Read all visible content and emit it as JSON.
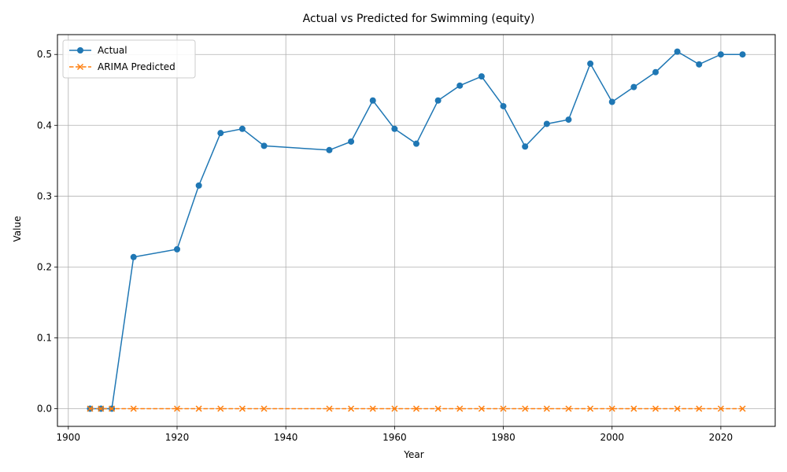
{
  "chart_data": {
    "type": "line",
    "title": "Actual vs Predicted for Swimming (equity)",
    "xlabel": "Year",
    "ylabel": "Value",
    "xlim": [
      1898,
      2030
    ],
    "ylim": [
      -0.025,
      0.528
    ],
    "xticks": [
      1900,
      1920,
      1940,
      1960,
      1980,
      2000,
      2020
    ],
    "yticks": [
      0.0,
      0.1,
      0.2,
      0.3,
      0.4,
      0.5
    ],
    "ytick_labels": [
      "0.0",
      "0.1",
      "0.2",
      "0.3",
      "0.4",
      "0.5"
    ],
    "grid": true,
    "legend_position": "top-left",
    "x": [
      1904,
      1906,
      1908,
      1912,
      1920,
      1924,
      1928,
      1932,
      1936,
      1948,
      1952,
      1956,
      1960,
      1964,
      1968,
      1972,
      1976,
      1980,
      1984,
      1988,
      1992,
      1996,
      2000,
      2004,
      2008,
      2012,
      2016,
      2020,
      2024
    ],
    "series": [
      {
        "name": "Actual",
        "color": "#1f77b4",
        "style": "solid",
        "marker": "circle",
        "values": [
          0.0,
          0.0,
          0.0,
          0.214,
          0.225,
          0.315,
          0.389,
          0.395,
          0.371,
          0.365,
          0.377,
          0.435,
          0.395,
          0.374,
          0.435,
          0.456,
          0.469,
          0.427,
          0.37,
          0.402,
          0.408,
          0.487,
          0.433,
          0.454,
          0.475,
          0.504,
          0.486,
          0.5,
          0.5
        ]
      },
      {
        "name": "ARIMA Predicted",
        "color": "#ff7f0e",
        "style": "dashed",
        "marker": "x",
        "values": [
          0.0,
          0.0,
          0.0,
          0.0,
          0.0,
          0.0,
          0.0,
          0.0,
          0.0,
          0.0,
          0.0,
          0.0,
          0.0,
          0.0,
          0.0,
          0.0,
          0.0,
          0.0,
          0.0,
          0.0,
          0.0,
          0.0,
          0.0,
          0.0,
          0.0,
          0.0,
          0.0,
          0.0,
          0.0
        ]
      }
    ]
  }
}
